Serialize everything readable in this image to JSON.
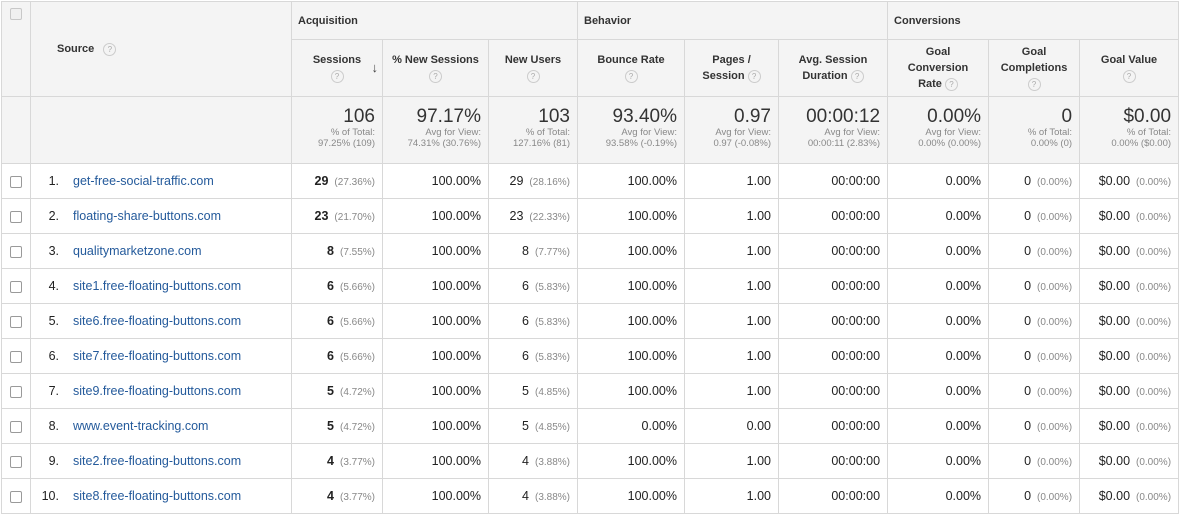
{
  "header": {
    "source_label": "Source",
    "groups": {
      "acquisition": "Acquisition",
      "behavior": "Behavior",
      "conversions": "Conversions"
    },
    "columns": [
      {
        "line1": "Sessions",
        "line2": ""
      },
      {
        "line1": "% New Sessions",
        "line2": ""
      },
      {
        "line1": "New Users",
        "line2": ""
      },
      {
        "line1": "Bounce Rate",
        "line2": ""
      },
      {
        "line1": "Pages /",
        "line2": "Session"
      },
      {
        "line1": "Avg. Session",
        "line2": "Duration"
      },
      {
        "line1": "Goal",
        "line2": "Conversion",
        "line3": "Rate"
      },
      {
        "line1": "Goal",
        "line2": "Completions"
      },
      {
        "line1": "Goal Value",
        "line2": ""
      }
    ],
    "help_glyph": "?",
    "sort_glyph": "↓"
  },
  "totals": [
    {
      "big": "106",
      "l1": "% of Total:",
      "l2": "97.25% (109)"
    },
    {
      "big": "97.17%",
      "l1": "Avg for View:",
      "l2": "74.31% (30.76%)"
    },
    {
      "big": "103",
      "l1": "% of Total:",
      "l2": "127.16% (81)"
    },
    {
      "big": "93.40%",
      "l1": "Avg for View:",
      "l2": "93.58% (-0.19%)"
    },
    {
      "big": "0.97",
      "l1": "Avg for View:",
      "l2": "0.97 (-0.08%)"
    },
    {
      "big": "00:00:12",
      "l1": "Avg for View:",
      "l2": "00:00:11 (2.83%)"
    },
    {
      "big": "0.00%",
      "l1": "Avg for View:",
      "l2": "0.00% (0.00%)"
    },
    {
      "big": "0",
      "l1": "% of Total:",
      "l2": "0.00% (0)"
    },
    {
      "big": "$0.00",
      "l1": "% of Total:",
      "l2": "0.00% ($0.00)"
    }
  ],
  "rows": [
    {
      "idx": "1.",
      "source": "get-free-social-traffic.com",
      "sessions": "29",
      "sessions_pct": "(27.36%)",
      "new_sessions": "100.00%",
      "new_users": "29",
      "new_users_pct": "(28.16%)",
      "bounce": "100.00%",
      "pages": "1.00",
      "duration": "00:00:00",
      "conv_rate": "0.00%",
      "completions": "0",
      "completions_pct": "(0.00%)",
      "value": "$0.00",
      "value_pct": "(0.00%)"
    },
    {
      "idx": "2.",
      "source": "floating-share-buttons.com",
      "sessions": "23",
      "sessions_pct": "(21.70%)",
      "new_sessions": "100.00%",
      "new_users": "23",
      "new_users_pct": "(22.33%)",
      "bounce": "100.00%",
      "pages": "1.00",
      "duration": "00:00:00",
      "conv_rate": "0.00%",
      "completions": "0",
      "completions_pct": "(0.00%)",
      "value": "$0.00",
      "value_pct": "(0.00%)"
    },
    {
      "idx": "3.",
      "source": "qualitymarketzone.com",
      "sessions": "8",
      "sessions_pct": "(7.55%)",
      "new_sessions": "100.00%",
      "new_users": "8",
      "new_users_pct": "(7.77%)",
      "bounce": "100.00%",
      "pages": "1.00",
      "duration": "00:00:00",
      "conv_rate": "0.00%",
      "completions": "0",
      "completions_pct": "(0.00%)",
      "value": "$0.00",
      "value_pct": "(0.00%)"
    },
    {
      "idx": "4.",
      "source": "site1.free-floating-buttons.com",
      "sessions": "6",
      "sessions_pct": "(5.66%)",
      "new_sessions": "100.00%",
      "new_users": "6",
      "new_users_pct": "(5.83%)",
      "bounce": "100.00%",
      "pages": "1.00",
      "duration": "00:00:00",
      "conv_rate": "0.00%",
      "completions": "0",
      "completions_pct": "(0.00%)",
      "value": "$0.00",
      "value_pct": "(0.00%)"
    },
    {
      "idx": "5.",
      "source": "site6.free-floating-buttons.com",
      "sessions": "6",
      "sessions_pct": "(5.66%)",
      "new_sessions": "100.00%",
      "new_users": "6",
      "new_users_pct": "(5.83%)",
      "bounce": "100.00%",
      "pages": "1.00",
      "duration": "00:00:00",
      "conv_rate": "0.00%",
      "completions": "0",
      "completions_pct": "(0.00%)",
      "value": "$0.00",
      "value_pct": "(0.00%)"
    },
    {
      "idx": "6.",
      "source": "site7.free-floating-buttons.com",
      "sessions": "6",
      "sessions_pct": "(5.66%)",
      "new_sessions": "100.00%",
      "new_users": "6",
      "new_users_pct": "(5.83%)",
      "bounce": "100.00%",
      "pages": "1.00",
      "duration": "00:00:00",
      "conv_rate": "0.00%",
      "completions": "0",
      "completions_pct": "(0.00%)",
      "value": "$0.00",
      "value_pct": "(0.00%)"
    },
    {
      "idx": "7.",
      "source": "site9.free-floating-buttons.com",
      "sessions": "5",
      "sessions_pct": "(4.72%)",
      "new_sessions": "100.00%",
      "new_users": "5",
      "new_users_pct": "(4.85%)",
      "bounce": "100.00%",
      "pages": "1.00",
      "duration": "00:00:00",
      "conv_rate": "0.00%",
      "completions": "0",
      "completions_pct": "(0.00%)",
      "value": "$0.00",
      "value_pct": "(0.00%)"
    },
    {
      "idx": "8.",
      "source": "www.event-tracking.com",
      "sessions": "5",
      "sessions_pct": "(4.72%)",
      "new_sessions": "100.00%",
      "new_users": "5",
      "new_users_pct": "(4.85%)",
      "bounce": "0.00%",
      "pages": "0.00",
      "duration": "00:00:00",
      "conv_rate": "0.00%",
      "completions": "0",
      "completions_pct": "(0.00%)",
      "value": "$0.00",
      "value_pct": "(0.00%)"
    },
    {
      "idx": "9.",
      "source": "site2.free-floating-buttons.com",
      "sessions": "4",
      "sessions_pct": "(3.77%)",
      "new_sessions": "100.00%",
      "new_users": "4",
      "new_users_pct": "(3.88%)",
      "bounce": "100.00%",
      "pages": "1.00",
      "duration": "00:00:00",
      "conv_rate": "0.00%",
      "completions": "0",
      "completions_pct": "(0.00%)",
      "value": "$0.00",
      "value_pct": "(0.00%)"
    },
    {
      "idx": "10.",
      "source": "site8.free-floating-buttons.com",
      "sessions": "4",
      "sessions_pct": "(3.77%)",
      "new_sessions": "100.00%",
      "new_users": "4",
      "new_users_pct": "(3.88%)",
      "bounce": "100.00%",
      "pages": "1.00",
      "duration": "00:00:00",
      "conv_rate": "0.00%",
      "completions": "0",
      "completions_pct": "(0.00%)",
      "value": "$0.00",
      "value_pct": "(0.00%)"
    }
  ],
  "colors": {
    "link": "#245a9b",
    "header_bg": "#f4f4f4",
    "border": "#d8d8d8"
  }
}
